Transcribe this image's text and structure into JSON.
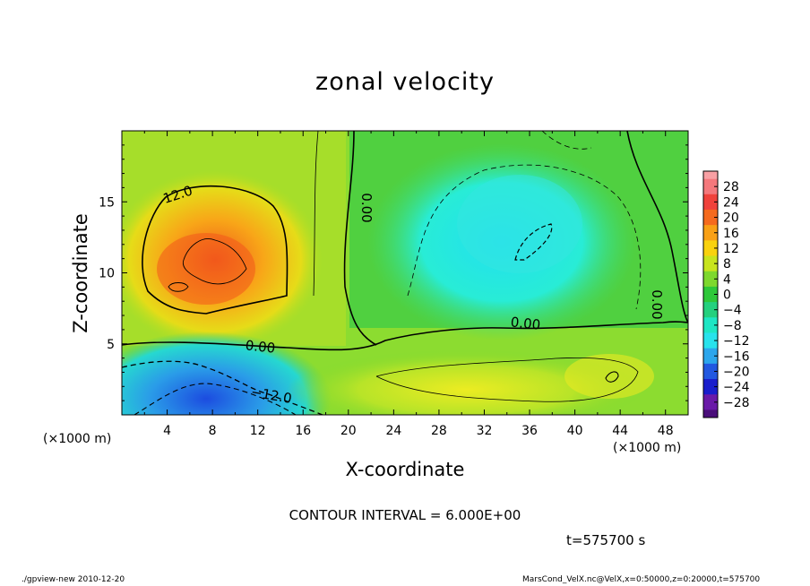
{
  "chart_data": {
    "type": "heatmap",
    "title": "zonal velocity",
    "xlabel": "X-coordinate",
    "ylabel": "Z-coordinate",
    "x_unit_label": "(×1000 m)",
    "x_unit_label_right": "(×1000 m)",
    "xlim": [
      0,
      50
    ],
    "ylim": [
      0,
      20
    ],
    "x_ticks": [
      "4",
      "8",
      "12",
      "16",
      "20",
      "24",
      "28",
      "32",
      "36",
      "40",
      "44",
      "48"
    ],
    "y_ticks": [
      "5",
      "10",
      "15"
    ],
    "colorbar": {
      "labels": [
        "28",
        "24",
        "20",
        "16",
        "12",
        "8",
        "4",
        "0",
        "−4",
        "−8",
        "−12",
        "−16",
        "−20",
        "−24",
        "−28"
      ],
      "colors": [
        "#f4787c",
        "#f0423c",
        "#f56a1e",
        "#f8a016",
        "#f9d20e",
        "#c8e41e",
        "#7ed82e",
        "#2ec83a",
        "#24d07e",
        "#1ee6c4",
        "#28e2ec",
        "#2ca6ec",
        "#2258e0",
        "#1a1ecc",
        "#6a1aa8"
      ]
    },
    "contour_interval": "CONTOUR INTERVAL = 6.000E+00",
    "contour_labels": [
      "12.0",
      "0.00",
      "0.00",
      "0.00",
      "0.00",
      "−12.0"
    ],
    "time_label": "t=575700 s",
    "footer_left": "./gpview-new  2010-12-20",
    "footer_right": "MarsCond_VelX.nc@VelX,x=0:50000,z=0:20000,t=575700"
  }
}
